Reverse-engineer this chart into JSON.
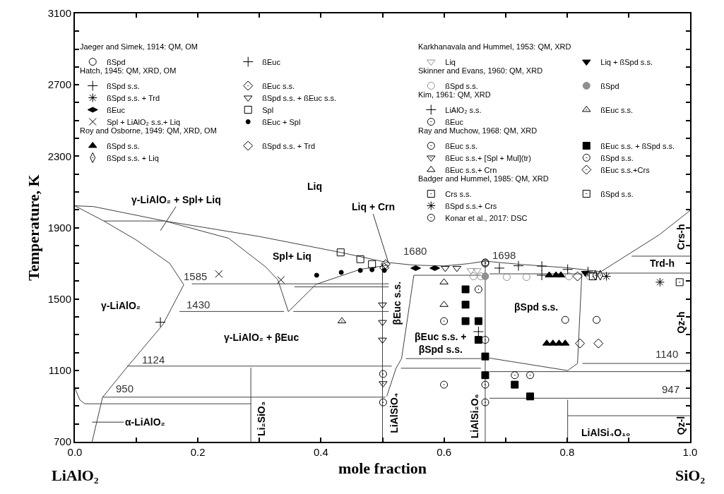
{
  "chart_data": {
    "type": "scatter",
    "xlabel": "mole fraction",
    "ylabel": "Temperature, K",
    "xlim": [
      0,
      1
    ],
    "ylim": [
      700,
      3100
    ],
    "xticks": [
      {
        "value": 0,
        "label": "0.0"
      },
      {
        "value": 0.1,
        "label": null
      },
      {
        "value": 0.2,
        "label": "0.2"
      },
      {
        "value": 0.3,
        "label": null
      },
      {
        "value": 0.4,
        "label": "0.4"
      },
      {
        "value": 0.5,
        "label": null
      },
      {
        "value": 0.6,
        "label": "0.6"
      },
      {
        "value": 0.7,
        "label": null
      },
      {
        "value": 0.8,
        "label": "0.8"
      },
      {
        "value": 0.9,
        "label": null
      },
      {
        "value": 1,
        "label": "1.0"
      }
    ],
    "yticks": [
      700,
      {
        "value": 800,
        "label": null
      },
      {
        "value": 900,
        "label": null
      },
      {
        "value": 1000,
        "label": null
      },
      1100,
      {
        "value": 1200,
        "label": null
      },
      {
        "value": 1300,
        "label": null
      },
      {
        "value": 1400,
        "label": null
      },
      1500,
      {
        "value": 1600,
        "label": null
      },
      {
        "value": 1700,
        "label": null
      },
      {
        "value": 1800,
        "label": null
      },
      1900,
      {
        "value": 2000,
        "label": null
      },
      {
        "value": 2100,
        "label": null
      },
      {
        "value": 2200,
        "label": null
      },
      2300,
      {
        "value": 2400,
        "label": null
      },
      {
        "value": 2500,
        "label": null
      },
      {
        "value": 2600,
        "label": null
      },
      2700,
      {
        "value": 2800,
        "label": null
      },
      {
        "value": 2900,
        "label": null
      },
      {
        "value": 3000,
        "label": null
      },
      3100
    ],
    "legend": "top",
    "annotations": [
      "Jaeger and Simek, 1914: QM, OM",
      "Hatch, 1945: QM, XRD, OM",
      "Roy and Osborne, 1949: QM, XRD, OM",
      "Karkhanavala and Hummel, 1953: QM, XRD",
      "Skinner and Evans, 1960: QM, XRD",
      "Kim, 1961: QM, XRD",
      "Ray and Muchow, 1968: QM, XRD",
      "Badger and Hummel, 1985: QM, XRD",
      "Liq",
      "γ-LiAlO₂ + Spl+ Liq",
      {
        "text": "Liq + Crn",
        "x": 0.51,
        "y": 1700
      },
      "α-LiAlO₂",
      "Spl+ Liq",
      "γ-LiAlO₂",
      "γ-LiAlO₂ + βEuc",
      "βEuc s.s.",
      "βSpd s.s.",
      "βEuc s.s. +\nβSpd s.s.",
      "LiAlSiO₄",
      "Li₂SiO₃",
      "LiAlSi₂O₆",
      "LiAlSi₄O₁₀",
      "Trd-h",
      "Crs-h",
      "Qz-h",
      "Qz-l",
      "1585",
      "1430",
      "1124",
      "950",
      "1680",
      "1698",
      "1140",
      "947",
      "LiAlO₂",
      "SiO₂"
    ],
    "series": [
      {
        "type": "line",
        "color": "#404040",
        "marker": "none",
        "x": [
          0,
          0.03,
          0.146,
          0.3,
          0.432,
          0.507,
          0.55,
          0.6,
          0.64,
          0.667,
          0.72,
          0.8,
          0.855,
          0.95,
          1.0
        ],
        "values": [
          2022,
          2018,
          1937,
          1850,
          1761,
          1705,
          1690,
          1685,
          1698,
          1712,
          1695,
          1675,
          1653,
          1860,
          1996
        ]
      },
      {
        "type": "line",
        "color": "#404040",
        "marker": "none",
        "x": [
          0,
          0.047,
          0.1,
          0.154,
          0.177,
          0.143,
          0.085,
          0.045,
          0.028
        ],
        "values": [
          2022,
          1937,
          1830,
          1700,
          1580,
          1356,
          1119,
          949,
          700
        ]
      },
      {
        "type": "line",
        "color": "#404040",
        "marker": "none",
        "x": [
          0.047,
          0.146,
          0.25,
          0.31,
          0.33,
          0.347,
          0.392,
          0.464,
          0.51
        ],
        "values": [
          1937,
          1937,
          1840,
          1680,
          1607,
          1429,
          1582,
          1666,
          1690
        ]
      },
      {
        "type": "line",
        "color": "#404040",
        "marker": "none",
        "x": [
          0.19,
          0.51
        ],
        "values": [
          1585,
          1585
        ]
      },
      {
        "type": "line",
        "color": "#404040",
        "marker": "none",
        "x": [
          0.357,
          0.51
        ],
        "values": [
          1568,
          1568
        ]
      },
      {
        "type": "line",
        "color": "#404040",
        "marker": "none",
        "x": [
          0.17,
          0.34
        ],
        "values": [
          1430,
          1430
        ]
      },
      {
        "type": "line",
        "color": "#404040",
        "marker": "none",
        "x": [
          0.355,
          0.51
        ],
        "values": [
          1430,
          1430
        ]
      },
      {
        "type": "line",
        "color": "#404040",
        "marker": "none",
        "x": [
          0.085,
          0.515
        ],
        "values": [
          1124,
          1124
        ]
      },
      {
        "type": "line",
        "color": "#404040",
        "marker": "none",
        "x": [
          0.045,
          0.505
        ],
        "values": [
          950,
          950
        ]
      },
      {
        "type": "line",
        "color": "#404040",
        "marker": "none",
        "x": [
          0,
          0.008,
          0.016,
          0.286
        ],
        "values": [
          1000,
          935,
          913,
          913
        ]
      },
      {
        "type": "line",
        "color": "#404040",
        "marker": "none",
        "x": [
          0.286,
          0.286
        ],
        "values": [
          700,
          1115
        ]
      },
      {
        "type": "line",
        "color": "#404040",
        "marker": "none",
        "x": [
          0.5,
          0.5
        ],
        "values": [
          700,
          1700
        ]
      },
      {
        "type": "line",
        "color": "#404040",
        "marker": "none",
        "x": [
          0.66,
          0.551,
          0.531,
          0.522,
          0.507
        ],
        "values": [
          1633,
          1633,
          1166,
          1112,
          955
        ]
      },
      {
        "type": "line",
        "color": "#404040",
        "marker": "none",
        "x": [
          0.667,
          0.667
        ],
        "values": [
          700,
          1712
        ]
      },
      {
        "type": "line",
        "color": "#404040",
        "marker": "none",
        "x": [
          0.538,
          0.66
        ],
        "values": [
          1166,
          1166
        ]
      },
      {
        "type": "line",
        "color": "#404040",
        "marker": "none",
        "x": [
          0.674,
          0.824,
          0.817,
          0.801,
          0.674
        ],
        "values": [
          1641,
          1641,
          1139,
          1099,
          1169
        ]
      },
      {
        "type": "line",
        "color": "#404040",
        "marker": "none",
        "x": [
          0.825,
          1.0
        ],
        "values": [
          1139,
          1139
        ]
      },
      {
        "type": "line",
        "color": "#404040",
        "marker": "none",
        "x": [
          0.53,
          0.66
        ],
        "values": [
          1112,
          1112
        ]
      },
      {
        "type": "line",
        "color": "#404040",
        "marker": "none",
        "x": [
          0.674,
          1.0
        ],
        "values": [
          1093,
          1093
        ]
      },
      {
        "type": "line",
        "color": "#404040",
        "marker": "none",
        "x": [
          0.674,
          1.0
        ],
        "values": [
          944,
          944
        ]
      },
      {
        "type": "line",
        "color": "#404040",
        "marker": "none",
        "x": [
          0.801,
          0.801
        ],
        "values": [
          700,
          935
        ]
      },
      {
        "type": "line",
        "color": "#404040",
        "marker": "none",
        "x": [
          0.801,
          1.0
        ],
        "values": [
          846,
          846
        ]
      },
      {
        "type": "line",
        "color": "#404040",
        "marker": "none",
        "x": [
          0.832,
          1.0
        ],
        "values": [
          1645,
          1645
        ]
      },
      {
        "type": "line",
        "color": "#404040",
        "marker": "none",
        "x": [
          0.905,
          1.0
        ],
        "values": [
          1740,
          1740
        ]
      },
      {
        "name": "ßSpd",
        "color": "#000000",
        "marker": "circle",
        "x": [
          0.797,
          0.848
        ],
        "values": [
          1383,
          1383
        ]
      },
      {
        "name": "ßEuc",
        "color": "#000000",
        "marker": "cross",
        "x": [
          0.656
        ],
        "values": [
          1317
        ]
      },
      {
        "name": "ßSpd s.s.",
        "color": "#000000",
        "marker": "cross",
        "x": [
          0.69,
          0.721,
          0.759,
          0.801,
          0.834,
          0.759
        ],
        "values": [
          1673,
          1686,
          1684,
          1666,
          1653,
          1633
        ]
      },
      {
        "name": "ßEuc s.s.",
        "color": "#000000",
        "marker": "diamond",
        "x": [
          0.503
        ],
        "values": [
          1675
        ]
      },
      {
        "name": "ßSpd s.s. + Trd",
        "color": "#000000",
        "marker": "cross",
        "x": [
          0.864
        ],
        "values": [
          1627
        ]
      },
      {
        "name": "ßSpd s.s. + ßEuc s.s.",
        "color": "#000000",
        "marker": "triangle",
        "x": [
          0.602,
          0.621,
          0.5,
          0.5,
          0.5
        ],
        "values": [
          1673,
          1673,
          1468,
          1370,
          1271
        ]
      },
      {
        "name": "ßEuc",
        "color": "#000000",
        "marker": "diamond",
        "x": [
          0.554,
          0.585
        ],
        "values": [
          1673,
          1673
        ]
      },
      {
        "name": "Spl",
        "color": "#000000",
        "marker": "square",
        "x": [
          0.432,
          0.464,
          0.483
        ],
        "values": [
          1761,
          1723,
          1695
        ]
      },
      {
        "name": "Spl + LiAlO₂ s.s.+ Liq",
        "color": "#000000",
        "marker": "cross",
        "x": [
          0.234,
          0.335
        ],
        "values": [
          1640,
          1607
        ]
      },
      {
        "name": "ßEuc + Spl",
        "color": "#000000",
        "marker": "circle",
        "x": [
          0.393,
          0.433,
          0.464,
          0.483,
          0.503
        ],
        "values": [
          1633,
          1649,
          1660,
          1664,
          1660
        ]
      },
      {
        "name": "ßSpd s.s.",
        "color": "#000000",
        "marker": "triangle",
        "x": [
          0.767,
          0.777,
          0.787,
          0.797,
          0.771,
          0.782,
          0.79
        ],
        "values": [
          1251,
          1251,
          1251,
          1251,
          1633,
          1633,
          1633
        ]
      },
      {
        "name": "ßSpd s.s. + Trd",
        "color": "#000000",
        "marker": "diamond",
        "x": [
          0.821,
          0.851,
          0.817
        ],
        "values": [
          1251,
          1251,
          1627
        ]
      },
      {
        "name": "ßSpd s.s. + Liq",
        "color": "#000000",
        "marker": "diamond",
        "x": [
          0.846,
          0.854
        ],
        "values": [
          1633,
          1633
        ]
      },
      {
        "name": "Liq",
        "color": "#909090",
        "marker": "triangle",
        "x": [
          0.644,
          0.654
        ],
        "values": [
          1660,
          1660
        ]
      },
      {
        "name": "Liq + ßSpd s.s.",
        "color": "#000000",
        "marker": "triangle",
        "x": [
          0.83
        ],
        "values": [
          1645
        ]
      },
      {
        "name": "ßSpd s.s.",
        "color": "#909090",
        "marker": "circle",
        "x": [
          0.648,
          0.66,
          0.702,
          0.734,
          0.803,
          0.837
        ],
        "values": [
          1627,
          1627,
          1623,
          1623,
          1627,
          1627
        ]
      },
      {
        "name": "ßSpd",
        "color": "#909090",
        "marker": "circle",
        "x": [
          0.667
        ],
        "values": [
          1627
        ]
      },
      {
        "name": "LiAlO₂ s.s.",
        "color": "#000000",
        "marker": "cross",
        "x": [
          0.139
        ],
        "values": [
          1370
        ]
      },
      {
        "name": "ßEuc s.s.",
        "color": "#000000",
        "marker": "triangle",
        "x": [
          0.434
        ],
        "values": [
          1376
        ]
      },
      {
        "name": "ßEuc",
        "color": "#000000",
        "marker": "circle",
        "x": [
          0.667
        ],
        "values": [
          1699
        ]
      },
      {
        "name": "ßEuc s.s.",
        "color": "#000000",
        "marker": "circle",
        "x": [
          0.6,
          0.6,
          0.667,
          0.667,
          0.501,
          0.501
        ],
        "values": [
          1376,
          1020,
          1020,
          921,
          1080,
          921
        ]
      },
      {
        "name": "ßEuc s.s. + ßSpd s.s.",
        "color": "#000000",
        "marker": "square",
        "x": [
          0.635,
          0.635,
          0.635,
          0.656,
          0.656,
          0.667,
          0.667,
          0.715,
          0.74
        ],
        "values": [
          1554,
          1468,
          1376,
          1376,
          1271,
          1178,
          1073,
          1020,
          954
        ]
      },
      {
        "name": "ßEuc s.s.+ [Spl + Mul](tr)",
        "color": "#000000",
        "marker": "triangle",
        "x": [
          0.501
        ],
        "values": [
          1027
        ]
      },
      {
        "name": "ßSpd s.s.",
        "color": "#000000",
        "marker": "circle",
        "x": [
          0.656,
          0.667,
          0.715,
          0.74
        ],
        "values": [
          1554,
          1271,
          1073,
          1073
        ]
      },
      {
        "name": "ßEuc s.s.+ Crn",
        "color": "#000000",
        "marker": "triangle",
        "x": [
          0.6,
          0.6
        ],
        "values": [
          1594,
          1468
        ]
      },
      {
        "name": "ßEuc s.s.+Crs",
        "color": "#000000",
        "marker": "diamond",
        "x": [
          0.505
        ],
        "values": [
          1695
        ]
      },
      {
        "name": "Crs s.s.",
        "color": "#000000",
        "marker": "square",
        "x": [
          0.983
        ],
        "values": [
          1594
        ]
      },
      {
        "name": "ßSpd s.s.",
        "color": "#000000",
        "marker": "square",
        "x": [
          0.842
        ],
        "values": [
          1627
        ]
      },
      {
        "name": "ßSpd s.s.+ Crs",
        "color": "#000000",
        "marker": "cross",
        "x": [
          0.951
        ],
        "values": [
          1594
        ]
      },
      {
        "name": "Konar et al., 2017: DSC",
        "color": "#000000",
        "marker": "circle",
        "x": [
          0.667
        ],
        "values": [
          1705
        ]
      }
    ]
  }
}
